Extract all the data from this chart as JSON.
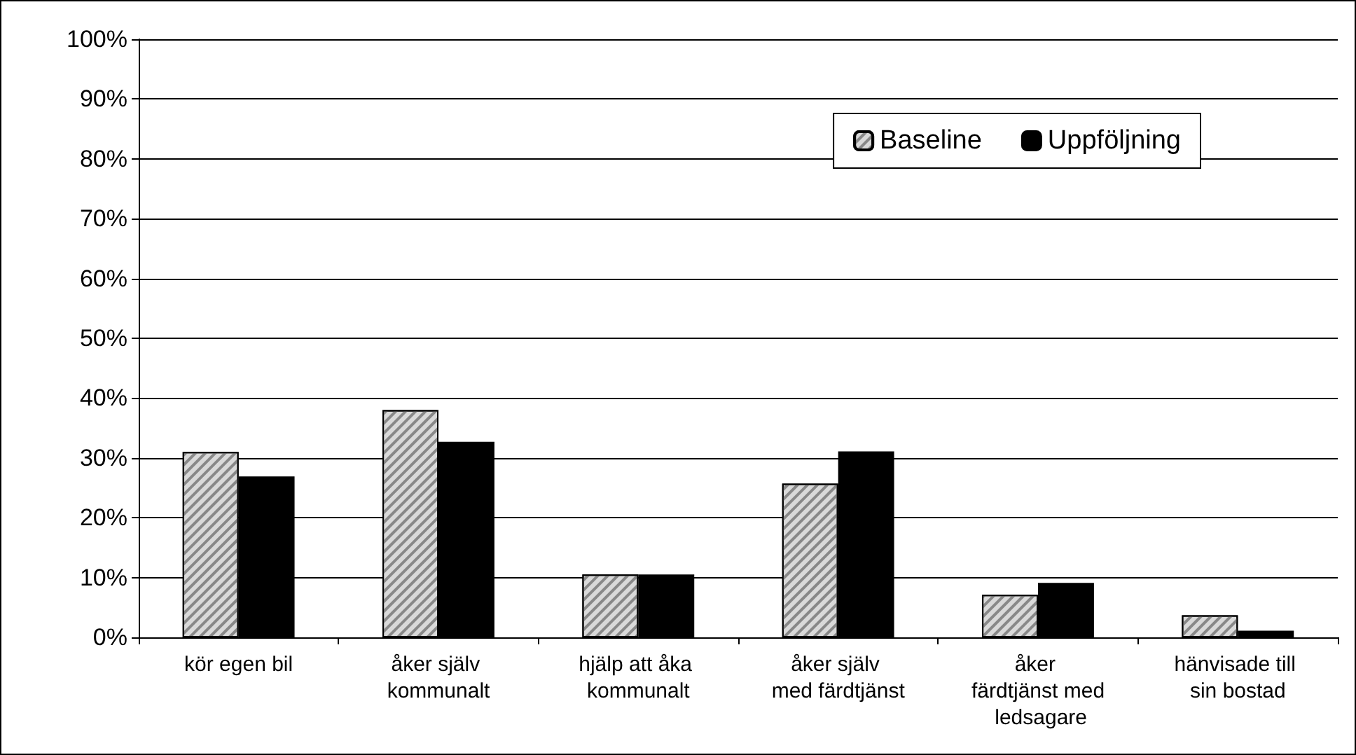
{
  "chart_data": {
    "type": "bar",
    "categories": [
      "kör egen bil",
      "åker själv kommunalt",
      "hjälp att åka kommunalt",
      "åker själv med färdtjänst",
      "åker färdtjänst med ledsagare",
      "hänvisade till sin bostad"
    ],
    "series": [
      {
        "name": "Baseline",
        "color": "#d9d9d9",
        "values": [
          31,
          38,
          10.5,
          25.7,
          7.1,
          3.7
        ]
      },
      {
        "name": "Uppföljning",
        "color": "#000000",
        "values": [
          26.9,
          32.7,
          10.5,
          31.1,
          9.1,
          1.1
        ]
      }
    ],
    "ylim": [
      0,
      100
    ],
    "yticks": [
      {
        "value": 0,
        "label": "0%"
      },
      {
        "value": 10,
        "label": "10%"
      },
      {
        "value": 20,
        "label": "20%"
      },
      {
        "value": 30,
        "label": "30%"
      },
      {
        "value": 40,
        "label": "40%"
      },
      {
        "value": 50,
        "label": "50%"
      },
      {
        "value": 60,
        "label": "60%"
      },
      {
        "value": 70,
        "label": "70%"
      },
      {
        "value": 80,
        "label": "80%"
      },
      {
        "value": 90,
        "label": "90%"
      },
      {
        "value": 100,
        "label": "100%"
      }
    ],
    "grid": "y",
    "legend": "top right"
  }
}
